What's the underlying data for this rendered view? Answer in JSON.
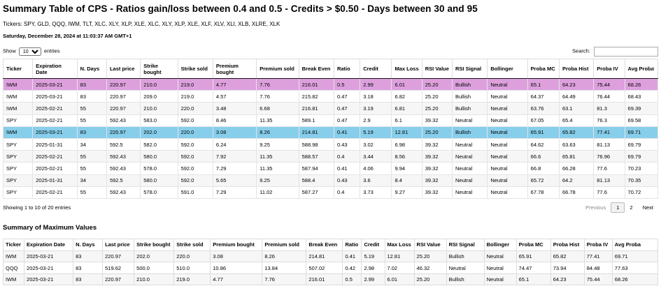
{
  "title": "Summary Table of CPS - Ratios gain/loss between 0.4 and 0.5 - Credits > $0.50 - Days between 30 and 95",
  "tickers_line": "Tickers: SPY, GLD, QQQ, IWM, TLT, XLC, XLY, XLP, XLE, XLC, XLY, XLP, XLE, XLF, XLV, XLI, XLB, XLRE, XLK",
  "timestamp": "Saturday, December 28, 2024 at 11:03:37 AM GMT+1",
  "controls": {
    "show_label": "Show",
    "show_value": "10",
    "entries_label": "entries",
    "search_label": "Search:",
    "search_value": ""
  },
  "main_table": {
    "headers": [
      "Ticker",
      "Expiration Date",
      "N. Days",
      "Last price",
      "Strike bought",
      "Strike sold",
      "Premium bought",
      "Premium sold",
      "Break Even",
      "Ratio",
      "Credit",
      "Max Loss",
      "RSI Value",
      "RSI Signal",
      "Bollinger",
      "Proba MC",
      "Proba Hist",
      "Proba IV",
      "Avg Proba"
    ],
    "rows": [
      [
        "IWM",
        "2025-03-21",
        "83",
        "220.97",
        "210.0",
        "219.0",
        "4.77",
        "7.76",
        "216.01",
        "0.5",
        "2.99",
        "6.01",
        "25.20",
        "Bullish",
        "Neutral",
        "65.1",
        "64.23",
        "75.44",
        "68.26"
      ],
      [
        "IWM",
        "2025-03-21",
        "83",
        "220.97",
        "209.0",
        "219.0",
        "4.57",
        "7.76",
        "215.82",
        "0.47",
        "3.18",
        "6.82",
        "25.20",
        "Bullish",
        "Neutral",
        "64.37",
        "64.49",
        "76.44",
        "68.43"
      ],
      [
        "IWM",
        "2025-02-21",
        "55",
        "220.97",
        "210.0",
        "220.0",
        "3.48",
        "6.68",
        "216.81",
        "0.47",
        "3.19",
        "6.81",
        "25.20",
        "Bullish",
        "Neutral",
        "63.76",
        "63.1",
        "81.3",
        "69.39"
      ],
      [
        "SPY",
        "2025-02-21",
        "55",
        "592.43",
        "583.0",
        "592.0",
        "8.46",
        "11.35",
        "589.1",
        "0.47",
        "2.9",
        "6.1",
        "39.32",
        "Neutral",
        "Neutral",
        "67.05",
        "65.4",
        "76.3",
        "69.58"
      ],
      [
        "IWM",
        "2025-03-21",
        "83",
        "220.97",
        "202.0",
        "220.0",
        "3.08",
        "8.26",
        "214.81",
        "0.41",
        "5.19",
        "12.81",
        "25.20",
        "Bullish",
        "Neutral",
        "65.91",
        "65.82",
        "77.41",
        "69.71"
      ],
      [
        "SPY",
        "2025-01-31",
        "34",
        "592.5",
        "582.0",
        "592.0",
        "6.24",
        "9.25",
        "588.98",
        "0.43",
        "3.02",
        "6.98",
        "39.32",
        "Neutral",
        "Neutral",
        "64.62",
        "63.63",
        "81.13",
        "69.79"
      ],
      [
        "SPY",
        "2025-02-21",
        "55",
        "592.43",
        "580.0",
        "592.0",
        "7.92",
        "11.35",
        "588.57",
        "0.4",
        "3.44",
        "8.56",
        "39.32",
        "Neutral",
        "Neutral",
        "66.6",
        "65.81",
        "76.96",
        "69.79"
      ],
      [
        "SPY",
        "2025-02-21",
        "55",
        "592.43",
        "578.0",
        "592.0",
        "7.29",
        "11.35",
        "587.94",
        "0.41",
        "4.06",
        "9.94",
        "39.32",
        "Neutral",
        "Neutral",
        "66.8",
        "66.28",
        "77.6",
        "70.23"
      ],
      [
        "SPY",
        "2025-01-31",
        "34",
        "592.5",
        "580.0",
        "592.0",
        "5.65",
        "9.25",
        "588.4",
        "0.43",
        "3.6",
        "8.4",
        "39.32",
        "Neutral",
        "Neutral",
        "65.72",
        "64.2",
        "81.13",
        "70.35"
      ],
      [
        "SPY",
        "2025-02-21",
        "55",
        "592.43",
        "578.0",
        "591.0",
        "7.29",
        "11.02",
        "587.27",
        "0.4",
        "3.73",
        "9.27",
        "39.32",
        "Neutral",
        "Neutral",
        "67.78",
        "66.78",
        "77.6",
        "70.72"
      ]
    ]
  },
  "footer": {
    "info": "Showing 1 to 10 of 20 entries",
    "prev": "Previous",
    "page1": "1",
    "page2": "2",
    "next": "Next"
  },
  "summary": {
    "title": "Summary of Maximum Values",
    "headers": [
      "Ticker",
      "Expiration Date",
      "N. Days",
      "Last price",
      "Strike bought",
      "Strike sold",
      "Premium bought",
      "Premium sold",
      "Break Even",
      "Ratio",
      "Credit",
      "Max Loss",
      "RSI Value",
      "RSI Signal",
      "Bollinger",
      "Proba MC",
      "Proba Hist",
      "Proba IV",
      "Avg Proba"
    ],
    "rows": [
      [
        "IWM",
        "2025-03-21",
        "83",
        "220.97",
        "202.0",
        "220.0",
        "3.08",
        "8.26",
        "214.81",
        "0.41",
        "5.19",
        "12.81",
        "25.20",
        "Bullish",
        "Neutral",
        "65.91",
        "65.82",
        "77.41",
        "69.71"
      ],
      [
        "QQQ",
        "2025-03-21",
        "83",
        "519.62",
        "500.0",
        "510.0",
        "10.86",
        "13.84",
        "507.02",
        "0.42",
        "2.98",
        "7.02",
        "46.32",
        "Neutral",
        "Neutral",
        "74.47",
        "73.94",
        "84.48",
        "77.63"
      ],
      [
        "IWM",
        "2025-03-21",
        "83",
        "220.97",
        "210.0",
        "219.0",
        "4.77",
        "7.76",
        "216.01",
        "0.5",
        "2.99",
        "6.01",
        "25.20",
        "Bullish",
        "Neutral",
        "65.1",
        "64.23",
        "75.44",
        "68.26"
      ]
    ]
  },
  "colors": {
    "selected_pink": "#dda0dd",
    "selected_blue": "#87ceeb"
  },
  "icons": {
    "sort_indicator": "sort-arrows-icon"
  }
}
